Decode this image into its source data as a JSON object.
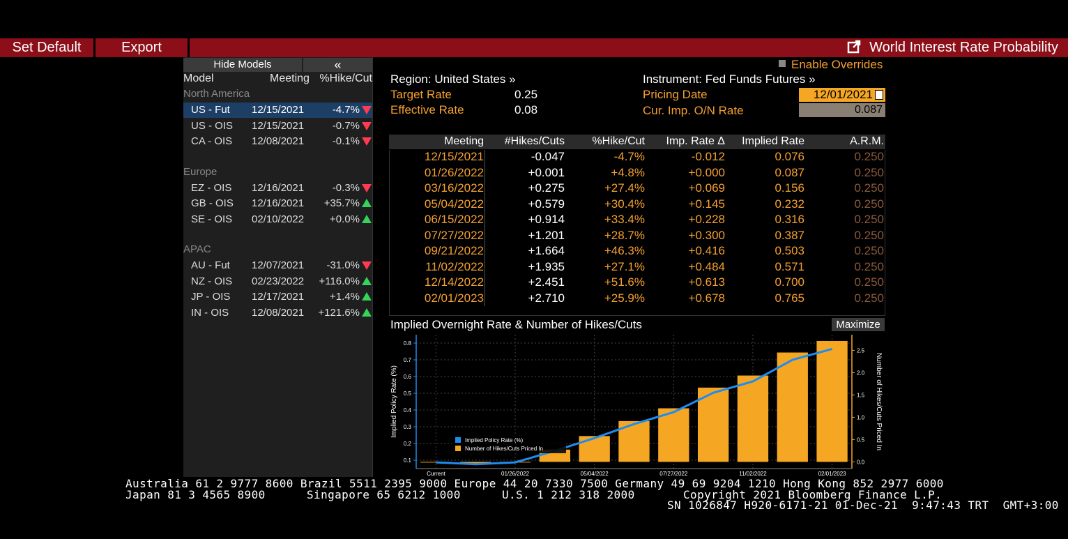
{
  "toolbar": {
    "set_default_label": "Set Default",
    "export_label": "Export",
    "title": "World Interest Rate Probability"
  },
  "left_panel": {
    "hide_models_label": "Hide Models",
    "collapse_label": "«",
    "headers": {
      "model": "Model",
      "meeting": "Meeting",
      "hike_cut": "%Hike/Cut"
    },
    "groups": [
      {
        "name": "North America",
        "rows": [
          {
            "model": "US - Fut",
            "meeting": "12/15/2021",
            "pct": "-4.7%",
            "dir": "down",
            "selected": true
          },
          {
            "model": "US - OIS",
            "meeting": "12/15/2021",
            "pct": "-0.7%",
            "dir": "down"
          },
          {
            "model": "CA - OIS",
            "meeting": "12/08/2021",
            "pct": "-0.1%",
            "dir": "down"
          }
        ]
      },
      {
        "name": "Europe",
        "rows": [
          {
            "model": "EZ - OIS",
            "meeting": "12/16/2021",
            "pct": "-0.3%",
            "dir": "down"
          },
          {
            "model": "GB - OIS",
            "meeting": "12/16/2021",
            "pct": "+35.7%",
            "dir": "up"
          },
          {
            "model": "SE - OIS",
            "meeting": "02/10/2022",
            "pct": "+0.0%",
            "dir": "up"
          }
        ]
      },
      {
        "name": "APAC",
        "rows": [
          {
            "model": "AU - Fut",
            "meeting": "12/07/2021",
            "pct": "-31.0%",
            "dir": "down"
          },
          {
            "model": "NZ - OIS",
            "meeting": "02/23/2022",
            "pct": "+116.0%",
            "dir": "up"
          },
          {
            "model": "JP - OIS",
            "meeting": "12/17/2021",
            "pct": "+1.4%",
            "dir": "up"
          },
          {
            "model": "IN - OIS",
            "meeting": "12/08/2021",
            "pct": "+121.6%",
            "dir": "up"
          }
        ]
      }
    ]
  },
  "info": {
    "enable_overrides": "Enable Overrides",
    "region": "Region: United States »",
    "instrument": "Instrument: Fed Funds Futures »",
    "target_rate_label": "Target Rate",
    "target_rate_value": "0.25",
    "effective_rate_label": "Effective Rate",
    "effective_rate_value": "0.08",
    "pricing_date_label": "Pricing Date",
    "pricing_date_value": "12/01/2021",
    "cur_imp_label": "Cur. Imp. O/N Rate",
    "cur_imp_value": "0.087"
  },
  "table": {
    "headers": [
      "Meeting",
      "#Hikes/Cuts",
      "%Hike/Cut",
      "Imp. Rate Δ",
      "Implied Rate",
      "A.R.M."
    ],
    "rows": [
      [
        "12/15/2021",
        "-0.047",
        "-4.7%",
        "-0.012",
        "0.076",
        "0.250"
      ],
      [
        "01/26/2022",
        "+0.001",
        "+4.8%",
        "+0.000",
        "0.087",
        "0.250"
      ],
      [
        "03/16/2022",
        "+0.275",
        "+27.4%",
        "+0.069",
        "0.156",
        "0.250"
      ],
      [
        "05/04/2022",
        "+0.579",
        "+30.4%",
        "+0.145",
        "0.232",
        "0.250"
      ],
      [
        "06/15/2022",
        "+0.914",
        "+33.4%",
        "+0.228",
        "0.316",
        "0.250"
      ],
      [
        "07/27/2022",
        "+1.201",
        "+28.7%",
        "+0.300",
        "0.387",
        "0.250"
      ],
      [
        "09/21/2022",
        "+1.664",
        "+46.3%",
        "+0.416",
        "0.503",
        "0.250"
      ],
      [
        "11/02/2022",
        "+1.935",
        "+27.1%",
        "+0.484",
        "0.571",
        "0.250"
      ],
      [
        "12/14/2022",
        "+2.451",
        "+51.6%",
        "+0.613",
        "0.700",
        "0.250"
      ],
      [
        "02/01/2023",
        "+2.710",
        "+25.9%",
        "+0.678",
        "0.765",
        "0.250"
      ]
    ]
  },
  "chart_title": "Implied Overnight Rate & Number of Hikes/Cuts",
  "maximize_label": "Maximize",
  "chart_data": {
    "type": "bar",
    "title": "Implied Overnight Rate & Number of Hikes/Cuts",
    "categories": [
      "Current",
      "12/15/2021",
      "01/26/2022",
      "03/16/2022",
      "05/04/2022",
      "06/15/2022",
      "07/27/2022",
      "09/21/2022",
      "11/02/2022",
      "12/14/2022",
      "02/01/2023"
    ],
    "x_tick_labels": [
      "Current",
      "01/26/2022",
      "05/04/2022",
      "07/27/2022",
      "11/02/2022",
      "02/01/2023"
    ],
    "series": [
      {
        "name": "Implied Policy Rate (%)",
        "type": "line",
        "axis": "left",
        "color": "#1e8cf0",
        "values": [
          0.087,
          0.076,
          0.087,
          0.156,
          0.232,
          0.316,
          0.387,
          0.503,
          0.571,
          0.7,
          0.765
        ]
      },
      {
        "name": "Number of Hikes/Cuts Priced In",
        "type": "bar",
        "axis": "right",
        "color": "#f5a623",
        "values": [
          0.0,
          -0.047,
          0.001,
          0.275,
          0.579,
          0.914,
          1.201,
          1.664,
          1.935,
          2.451,
          2.71
        ]
      }
    ],
    "ylabel_left": "Implied Policy Rate (%)",
    "ylabel_right": "Number of Hikes/Cuts Priced In",
    "ylim_left": [
      0.05,
      0.85
    ],
    "yticks_left": [
      0.1,
      0.2,
      0.3,
      0.4,
      0.5,
      0.6,
      0.7,
      0.8
    ],
    "ylim_right": [
      -0.15,
      2.85
    ],
    "yticks_right": [
      0.0,
      0.5,
      1.0,
      1.5,
      2.0,
      2.5
    ],
    "grid": true,
    "legend": "bottom-left"
  },
  "footer": {
    "line1": "Australia 61 2 9777 8600 Brazil 5511 2395 9000 Europe 44 20 7330 7500 Germany 49 69 9204 1210 Hong Kong 852 2977 6000",
    "line2a": "Japan 81 3 4565 8900",
    "line2b": "Singapore 65 6212 1000",
    "line2c": "U.S. 1 212 318 2000",
    "line2d": "Copyright 2021 Bloomberg Finance L.P.",
    "line3": "SN 1026847 H920-6171-21 01-Dec-21  9:47:43 TRT  GMT+3:00"
  },
  "colors": {
    "header_red": "#8b0e18",
    "accent_orange": "#f5a030",
    "line_blue": "#1e8cf0",
    "bar_orange": "#f5a623"
  }
}
